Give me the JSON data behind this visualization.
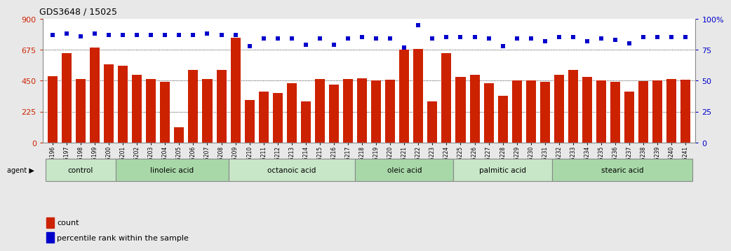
{
  "title": "GDS3648 / 15025",
  "samples": [
    "GSM525196",
    "GSM525197",
    "GSM525198",
    "GSM525199",
    "GSM525200",
    "GSM525201",
    "GSM525202",
    "GSM525203",
    "GSM525204",
    "GSM525205",
    "GSM525206",
    "GSM525207",
    "GSM525208",
    "GSM525209",
    "GSM525210",
    "GSM525211",
    "GSM525212",
    "GSM525213",
    "GSM525214",
    "GSM525215",
    "GSM525216",
    "GSM525217",
    "GSM525218",
    "GSM525219",
    "GSM525220",
    "GSM525221",
    "GSM525222",
    "GSM525223",
    "GSM525224",
    "GSM525225",
    "GSM525226",
    "GSM525227",
    "GSM525228",
    "GSM525229",
    "GSM525230",
    "GSM525231",
    "GSM525232",
    "GSM525233",
    "GSM525234",
    "GSM525235",
    "GSM525236",
    "GSM525237",
    "GSM525238",
    "GSM525239",
    "GSM525240",
    "GSM525241"
  ],
  "counts": [
    480,
    650,
    460,
    690,
    570,
    560,
    490,
    460,
    440,
    110,
    530,
    460,
    530,
    760,
    310,
    370,
    360,
    430,
    300,
    460,
    420,
    460,
    465,
    450,
    455,
    675,
    680,
    300,
    650,
    475,
    490,
    430,
    340,
    450,
    450,
    440,
    490,
    530,
    475,
    450,
    440,
    370,
    445,
    450,
    460,
    455
  ],
  "percentile_ranks": [
    87,
    88,
    86,
    88,
    87,
    87,
    87,
    87,
    87,
    87,
    87,
    88,
    87,
    87,
    78,
    84,
    84,
    84,
    79,
    84,
    79,
    84,
    85,
    84,
    84,
    77,
    95,
    84,
    85,
    85,
    85,
    84,
    78,
    84,
    84,
    82,
    85,
    85,
    82,
    84,
    83,
    80,
    85,
    85,
    85,
    85
  ],
  "groups": [
    {
      "label": "control",
      "start": 0,
      "end": 5,
      "color": "#c8e6c8"
    },
    {
      "label": "linoleic acid",
      "start": 5,
      "end": 13,
      "color": "#a8d8a8"
    },
    {
      "label": "octanoic acid",
      "start": 13,
      "end": 22,
      "color": "#c8e6c8"
    },
    {
      "label": "oleic acid",
      "start": 22,
      "end": 29,
      "color": "#a8d8a8"
    },
    {
      "label": "palmitic acid",
      "start": 29,
      "end": 36,
      "color": "#c8e6c8"
    },
    {
      "label": "stearic acid",
      "start": 36,
      "end": 46,
      "color": "#a8d8a8"
    }
  ],
  "bar_color": "#cc2200",
  "dot_color": "#0000cc",
  "ylim_left": [
    0,
    900
  ],
  "ylim_right": [
    0,
    100
  ],
  "yticks_left": [
    0,
    225,
    450,
    675,
    900
  ],
  "yticks_right": [
    0,
    25,
    50,
    75,
    100
  ],
  "ytick_right_labels": [
    "0",
    "25",
    "50",
    "75",
    "100%"
  ],
  "bg_color": "#e8e8e8",
  "plot_bg": "#ffffff",
  "grid_color": "#000000",
  "grid_lines": [
    225,
    450,
    675
  ]
}
